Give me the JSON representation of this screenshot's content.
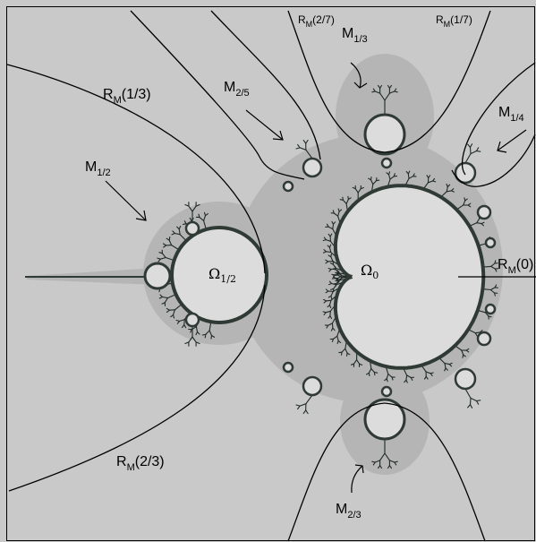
{
  "colors": {
    "background": "#c9c9c9",
    "halo": "#b3b3b3",
    "interior": "#dcdcdc",
    "boundary": "#2f3a35",
    "border": "#000000"
  },
  "labels": {
    "omega_main": {
      "base": "Ω",
      "sub": "0"
    },
    "omega_half": {
      "base": "Ω",
      "sub": "1/2"
    },
    "m_half": {
      "base": "M",
      "sub": "1/2"
    },
    "m_25": {
      "base": "M",
      "sub": "2/5"
    },
    "m_13": {
      "base": "M",
      "sub": "1/3"
    },
    "m_14": {
      "base": "M",
      "sub": "1/4"
    },
    "m_23": {
      "base": "M",
      "sub": "2/3"
    },
    "r_13": {
      "base": "R",
      "sub": "M",
      "arg": "(1/3)"
    },
    "r_23": {
      "base": "R",
      "sub": "M",
      "arg": "(2/3)"
    },
    "r_0": {
      "base": "R",
      "sub": "M",
      "arg": "(0)"
    },
    "r_27": {
      "base": "R",
      "sub": "M",
      "arg": "(2/7)"
    },
    "r_17": {
      "base": "R",
      "sub": "M",
      "arg": "(1/7)"
    }
  }
}
